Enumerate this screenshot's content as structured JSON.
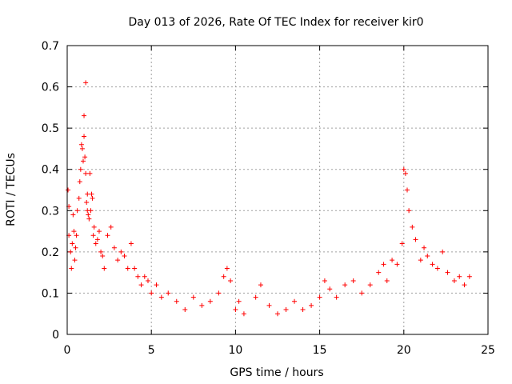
{
  "chart_data": {
    "type": "scatter",
    "title": "Day 013 of 2026, Rate Of TEC Index for receiver kir0",
    "xlabel": "GPS time / hours",
    "ylabel": "ROTI / TECUs",
    "xlim": [
      0,
      25
    ],
    "ylim": [
      0,
      0.7
    ],
    "xticks": [
      0,
      5,
      10,
      15,
      20,
      25
    ],
    "yticks": [
      0,
      0.1,
      0.2,
      0.3,
      0.4,
      0.5,
      0.6,
      0.7
    ],
    "xtick_labels": [
      "0",
      "5",
      "10",
      "15",
      "20",
      "25"
    ],
    "ytick_labels": [
      "0",
      "0.1",
      "0.2",
      "0.3",
      "0.4",
      "0.5",
      "0.6",
      "0.7"
    ],
    "grid": true,
    "series": [
      {
        "name": "ROTI",
        "marker": "+",
        "color": "#ff0000",
        "x": [
          0.05,
          0.1,
          0.1,
          0.2,
          0.25,
          0.3,
          0.35,
          0.4,
          0.45,
          0.5,
          0.55,
          0.6,
          0.7,
          0.75,
          0.8,
          0.85,
          0.9,
          0.95,
          1.0,
          1.0,
          1.05,
          1.1,
          1.1,
          1.15,
          1.2,
          1.2,
          1.25,
          1.3,
          1.35,
          1.4,
          1.45,
          1.5,
          1.55,
          1.6,
          1.7,
          1.8,
          1.9,
          2.0,
          2.1,
          2.2,
          2.4,
          2.6,
          2.8,
          3.0,
          3.2,
          3.4,
          3.6,
          3.8,
          4.0,
          4.2,
          4.4,
          4.6,
          4.8,
          5.0,
          5.3,
          5.6,
          6.0,
          6.5,
          7.0,
          7.5,
          8.0,
          8.5,
          9.0,
          9.3,
          9.5,
          9.7,
          10.0,
          10.2,
          10.5,
          11.2,
          11.5,
          12.0,
          12.5,
          13.0,
          13.5,
          14.0,
          14.5,
          15.0,
          15.3,
          15.6,
          16.0,
          16.5,
          17.0,
          17.5,
          18.0,
          18.5,
          18.8,
          19.0,
          19.3,
          19.6,
          19.9,
          20.0,
          20.1,
          20.2,
          20.3,
          20.5,
          20.7,
          21.0,
          21.2,
          21.4,
          21.7,
          22.0,
          22.3,
          22.6,
          23.0,
          23.3,
          23.6,
          23.9
        ],
        "y": [
          0.35,
          0.31,
          0.24,
          0.2,
          0.16,
          0.22,
          0.29,
          0.25,
          0.18,
          0.21,
          0.24,
          0.3,
          0.33,
          0.37,
          0.4,
          0.46,
          0.45,
          0.42,
          0.53,
          0.48,
          0.43,
          0.61,
          0.39,
          0.32,
          0.3,
          0.34,
          0.29,
          0.28,
          0.39,
          0.3,
          0.34,
          0.33,
          0.24,
          0.26,
          0.22,
          0.23,
          0.25,
          0.2,
          0.19,
          0.16,
          0.24,
          0.26,
          0.21,
          0.18,
          0.2,
          0.19,
          0.16,
          0.22,
          0.16,
          0.14,
          0.12,
          0.14,
          0.13,
          0.1,
          0.12,
          0.09,
          0.1,
          0.08,
          0.06,
          0.09,
          0.07,
          0.08,
          0.1,
          0.14,
          0.16,
          0.13,
          0.06,
          0.08,
          0.05,
          0.09,
          0.12,
          0.07,
          0.05,
          0.06,
          0.08,
          0.06,
          0.07,
          0.09,
          0.13,
          0.11,
          0.09,
          0.12,
          0.13,
          0.1,
          0.12,
          0.15,
          0.17,
          0.13,
          0.18,
          0.17,
          0.22,
          0.4,
          0.39,
          0.35,
          0.3,
          0.26,
          0.23,
          0.18,
          0.21,
          0.19,
          0.17,
          0.16,
          0.2,
          0.15,
          0.13,
          0.14,
          0.12,
          0.14
        ]
      }
    ]
  }
}
